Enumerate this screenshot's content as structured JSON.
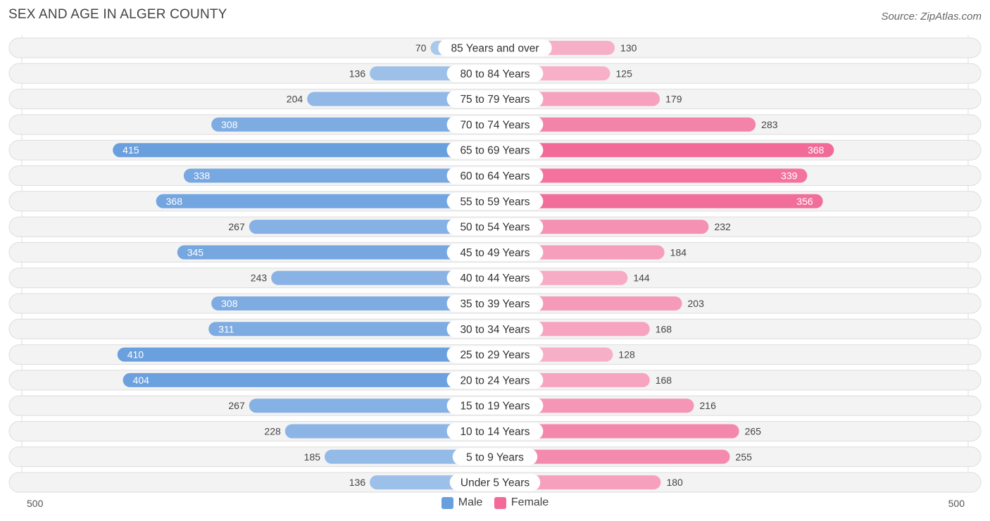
{
  "title": "SEX AND AGE IN ALGER COUNTY",
  "source": "Source: ZipAtlas.com",
  "colors": {
    "male_strong": "#6a9fde",
    "male_light": "#a9c8ec",
    "female_strong": "#f26b98",
    "female_light": "#f7b0c8",
    "row_bg": "#eeeeee",
    "row_border": "#dddddd"
  },
  "legend": {
    "male": "Male",
    "female": "Female"
  },
  "axis": {
    "left_label": "500",
    "right_label": "500"
  },
  "chart_data": {
    "type": "bar",
    "orientation": "horizontal-diverging",
    "categories": [
      "85 Years and over",
      "80 to 84 Years",
      "75 to 79 Years",
      "70 to 74 Years",
      "65 to 69 Years",
      "60 to 64 Years",
      "55 to 59 Years",
      "50 to 54 Years",
      "45 to 49 Years",
      "40 to 44 Years",
      "35 to 39 Years",
      "30 to 34 Years",
      "25 to 29 Years",
      "20 to 24 Years",
      "15 to 19 Years",
      "10 to 14 Years",
      "5 to 9 Years",
      "Under 5 Years"
    ],
    "series": [
      {
        "name": "Male",
        "values": [
          70,
          136,
          204,
          308,
          415,
          338,
          368,
          267,
          345,
          243,
          308,
          311,
          410,
          404,
          267,
          228,
          185,
          136
        ]
      },
      {
        "name": "Female",
        "values": [
          130,
          125,
          179,
          283,
          368,
          339,
          356,
          232,
          184,
          144,
          203,
          168,
          128,
          168,
          216,
          265,
          255,
          180
        ]
      }
    ],
    "xlim": [
      -500,
      500
    ],
    "legend_position": "bottom-center"
  }
}
